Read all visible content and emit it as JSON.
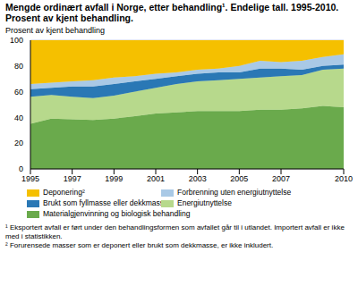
{
  "chart_data": {
    "type": "area",
    "stacked": true,
    "title": "Mengde ordinært avfall i Norge, etter behandling¹. Endelige tall. 1995-2010. Prosent av kjent behandling.",
    "y_label": "Prosent av kjent behandling",
    "x": [
      1995,
      1996,
      1997,
      1998,
      1999,
      2000,
      2001,
      2002,
      2003,
      2004,
      2005,
      2006,
      2007,
      2008,
      2009,
      2010
    ],
    "xlim": [
      1995,
      2010
    ],
    "xticks": [
      1995,
      1997,
      1999,
      2001,
      2003,
      2005,
      2007,
      2010
    ],
    "ylim": [
      0,
      100
    ],
    "yticks": [
      0,
      20,
      40,
      60,
      80,
      100
    ],
    "grid": true,
    "series": [
      {
        "name": "Deponering²",
        "color": "#f5c000",
        "values": [
          34,
          33,
          32,
          31,
          29,
          28,
          26,
          25,
          23,
          22,
          20,
          16,
          17,
          16,
          13,
          11
        ]
      },
      {
        "name": "Forbrenning uten energiutnyttelse",
        "color": "#a9c9e6",
        "values": [
          4,
          4,
          4,
          5,
          5,
          4,
          4,
          3,
          3,
          3,
          5,
          6,
          5,
          7,
          7,
          8
        ]
      },
      {
        "name": "Brukt som fyllmasse eller dekkmasse²",
        "color": "#2a78b5",
        "values": [
          6,
          5.5,
          8,
          9,
          9,
          8,
          7,
          6,
          6,
          6,
          5,
          7,
          6,
          4,
          3,
          3
        ]
      },
      {
        "name": "Energiutnyttelse",
        "color": "#b7d98c",
        "values": [
          21,
          18.5,
          17.5,
          17,
          18,
          19,
          20,
          22,
          23,
          24,
          25,
          25,
          26,
          26,
          28,
          30
        ]
      },
      {
        "name": "Materialgjenvinning og biologisk behandling",
        "color": "#6aaa4c",
        "values": [
          35,
          39,
          38.5,
          38,
          39,
          41,
          43,
          44,
          45,
          45,
          45,
          46,
          46,
          47,
          49,
          48
        ]
      }
    ],
    "notes": [
      "¹ Eksportert avfall er ført under den behandlingsformen som avfallet går til i utlandet. Importert avfall er ikke med i statistikken.",
      "² Forurensede masser som er deponert eller brukt som dekkmasse, er ikke inkludert."
    ]
  }
}
